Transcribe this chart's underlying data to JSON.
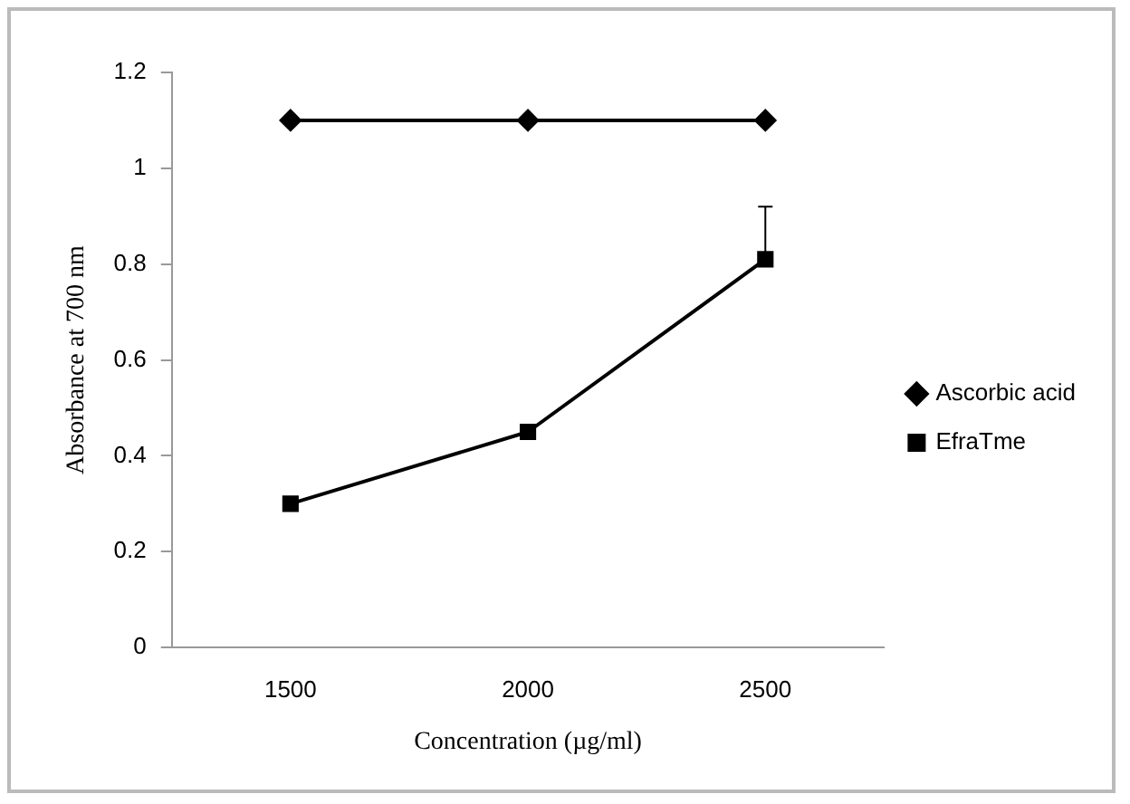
{
  "chart_data": {
    "type": "line",
    "xlabel": "Concentration (µg/ml)",
    "ylabel": "Absorbance at 700 nm",
    "categories": [
      "1500",
      "2000",
      "2500"
    ],
    "series": [
      {
        "name": "Ascorbic acid",
        "color": "#000000",
        "marker": "diamond",
        "values": [
          1.1,
          1.1,
          1.1
        ]
      },
      {
        "name": "EfraTme",
        "color": "#000000",
        "marker": "square",
        "values": [
          0.3,
          0.45,
          0.81
        ],
        "errors": [
          null,
          null,
          [
            0.81,
            0.92
          ]
        ]
      }
    ],
    "ylim": [
      0,
      1.2
    ],
    "yticks": [
      0,
      0.2,
      0.4,
      0.6,
      0.8,
      1,
      1.2
    ],
    "grid": false,
    "legend": "right",
    "line_style": "solid"
  }
}
